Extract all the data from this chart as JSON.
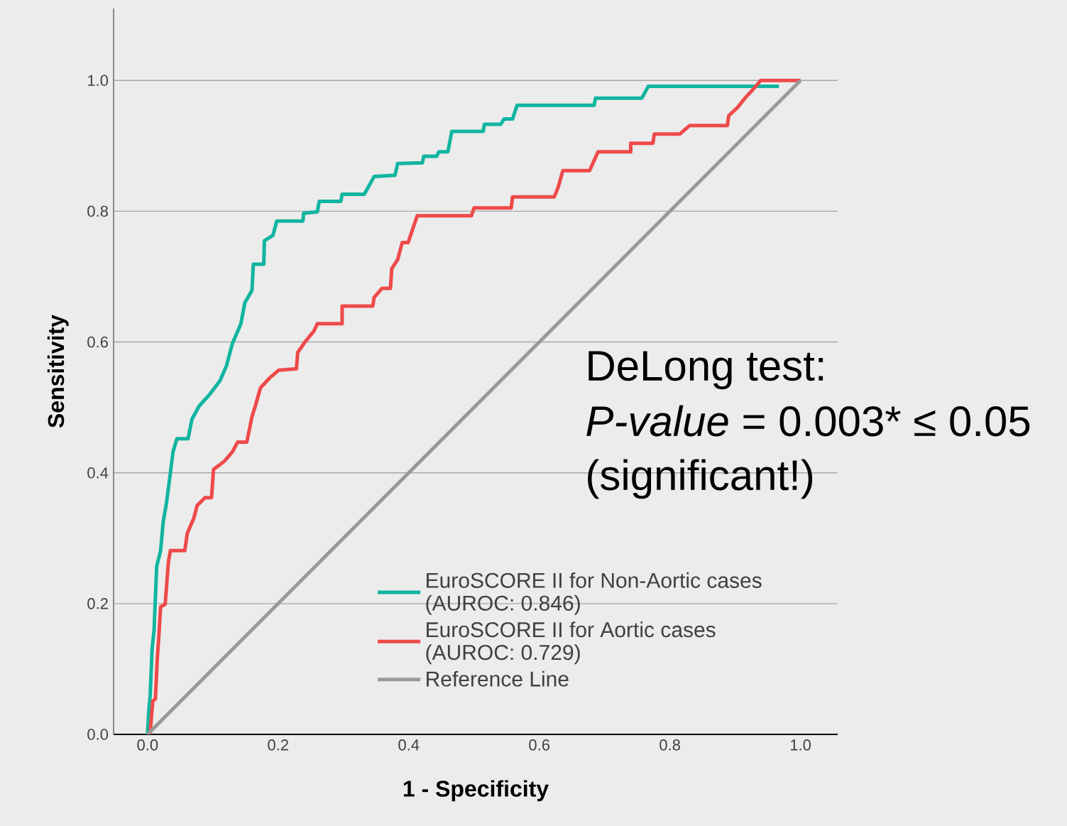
{
  "chart_data": {
    "type": "line",
    "xlabel": "1 - Specificity",
    "ylabel": "Sensitivity",
    "xlim": [
      -0.052,
      1.057
    ],
    "ylim": [
      0,
      1.11
    ],
    "xticks": [
      {
        "value": 0,
        "label": "0.0"
      },
      {
        "value": 0.2,
        "label": "0.2"
      },
      {
        "value": 0.4,
        "label": "0.4"
      },
      {
        "value": 0.6,
        "label": "0.6"
      },
      {
        "value": 0.8,
        "label": "0.8"
      },
      {
        "value": 1,
        "label": "1.0"
      }
    ],
    "yticks": [
      {
        "value": 0,
        "label": "0.0"
      },
      {
        "value": 0.2,
        "label": "0.2"
      },
      {
        "value": 0.4,
        "label": "0.4"
      },
      {
        "value": 0.6,
        "label": "0.6"
      },
      {
        "value": 0.8,
        "label": "0.8"
      },
      {
        "value": 1,
        "label": "1.0"
      }
    ],
    "grid": "y",
    "legend": "bottom right",
    "marker": "none",
    "line_style": "solid",
    "series": [
      {
        "name": "EuroSCORE II for Non-Aortic cases (AUROC: 0.846)",
        "color": "#11b5a0",
        "x": [
          0,
          0.002,
          0.004,
          0.007,
          0.01,
          0.014,
          0.02,
          0.024,
          0.029,
          0.035,
          0.039,
          0.045,
          0.062,
          0.068,
          0.079,
          0.096,
          0.111,
          0.121,
          0.13,
          0.143,
          0.149,
          0.16,
          0.162,
          0.178,
          0.179,
          0.192,
          0.198,
          0.238,
          0.239,
          0.26,
          0.263,
          0.296,
          0.298,
          0.332,
          0.347,
          0.379,
          0.383,
          0.421,
          0.423,
          0.443,
          0.446,
          0.46,
          0.466,
          0.514,
          0.516,
          0.541,
          0.546,
          0.559,
          0.566,
          0.684,
          0.686,
          0.757,
          0.767,
          0.967
        ],
        "values": [
          0,
          0.037,
          0.059,
          0.131,
          0.16,
          0.257,
          0.281,
          0.325,
          0.354,
          0.4,
          0.432,
          0.452,
          0.452,
          0.482,
          0.502,
          0.521,
          0.541,
          0.564,
          0.598,
          0.628,
          0.66,
          0.679,
          0.719,
          0.719,
          0.755,
          0.763,
          0.785,
          0.785,
          0.797,
          0.799,
          0.815,
          0.815,
          0.826,
          0.826,
          0.853,
          0.855,
          0.873,
          0.874,
          0.884,
          0.884,
          0.891,
          0.891,
          0.922,
          0.922,
          0.933,
          0.933,
          0.941,
          0.941,
          0.962,
          0.962,
          0.973,
          0.973,
          0.991,
          0.991
        ]
      },
      {
        "name": "EuroSCORE II for Aortic cases (AUROC: 0.729)",
        "color": "#ee4a4a",
        "x": [
          0,
          0.004,
          0.008,
          0.012,
          0.015,
          0.017,
          0.02,
          0.027,
          0.032,
          0.035,
          0.057,
          0.061,
          0.071,
          0.076,
          0.088,
          0.098,
          0.101,
          0.118,
          0.13,
          0.138,
          0.152,
          0.16,
          0.165,
          0.173,
          0.187,
          0.201,
          0.228,
          0.23,
          0.241,
          0.255,
          0.26,
          0.298,
          0.298,
          0.345,
          0.347,
          0.359,
          0.372,
          0.374,
          0.383,
          0.39,
          0.399,
          0.413,
          0.496,
          0.5,
          0.557,
          0.559,
          0.623,
          0.629,
          0.636,
          0.677,
          0.69,
          0.74,
          0.74,
          0.774,
          0.776,
          0.815,
          0.83,
          0.888,
          0.89,
          0.903,
          0.915,
          0.928,
          0.939,
          1
        ],
        "values": [
          0,
          0.002,
          0.051,
          0.054,
          0.118,
          0.145,
          0.195,
          0.199,
          0.264,
          0.281,
          0.281,
          0.308,
          0.331,
          0.35,
          0.362,
          0.362,
          0.405,
          0.418,
          0.432,
          0.447,
          0.447,
          0.486,
          0.502,
          0.53,
          0.545,
          0.557,
          0.559,
          0.584,
          0.6,
          0.617,
          0.628,
          0.628,
          0.655,
          0.655,
          0.668,
          0.682,
          0.682,
          0.712,
          0.726,
          0.752,
          0.752,
          0.793,
          0.793,
          0.805,
          0.805,
          0.822,
          0.822,
          0.837,
          0.862,
          0.862,
          0.891,
          0.891,
          0.904,
          0.904,
          0.918,
          0.918,
          0.931,
          0.931,
          0.946,
          0.958,
          0.973,
          0.987,
          1.0,
          1
        ]
      },
      {
        "name": "Reference Line",
        "color": "#999999",
        "x": [
          0,
          1
        ],
        "values": [
          0,
          1
        ]
      }
    ],
    "annotations": [
      "DeLong test:",
      "*P-value* = 0.003* ≤ 0.05",
      "(significant!)"
    ]
  }
}
